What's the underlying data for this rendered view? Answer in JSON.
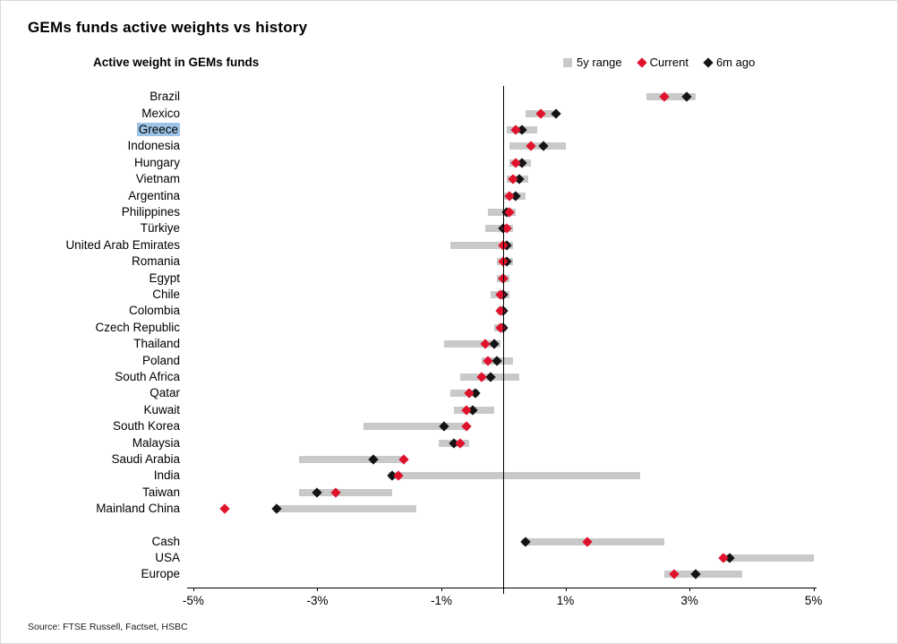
{
  "title": "GEMs funds active weights vs history",
  "subtitle": "Active weight in GEMs funds",
  "source": "Source: FTSE Russell, Factset, HSBC",
  "legend": [
    {
      "label": "5y range",
      "marker": "square"
    },
    {
      "label": "Current",
      "marker": "diamond"
    },
    {
      "label": "6m ago",
      "marker": "diamond"
    }
  ],
  "colors": {
    "current_red": "#e0112b",
    "six_m_black": "#141414",
    "range_gray": "#c9c9c9",
    "highlight_blue": "#9dc3e6"
  },
  "chart_data": {
    "type": "bar",
    "subtype": "horizontal-range-dot-plot",
    "title": "GEMs funds active weights vs history",
    "xlabel": "Active weight in GEMs funds (%)",
    "ylabel": "",
    "xlim": [
      -5.1,
      5.9
    ],
    "grid": false,
    "legend_position": "top-right",
    "highlighted_category": "Greece",
    "xticks": [
      {
        "value": -5,
        "label": "-5%"
      },
      {
        "value": -3,
        "label": "-3%"
      },
      {
        "value": -1,
        "label": "-1%"
      },
      {
        "value": 1,
        "label": "1%"
      },
      {
        "value": 3,
        "label": "3%"
      },
      {
        "value": 5,
        "label": "5%"
      }
    ],
    "series_names": [
      "5y range",
      "Current",
      "6m ago"
    ],
    "rows": [
      {
        "category": "Brazil",
        "range": [
          2.3,
          3.1
        ],
        "current": 2.6,
        "six_m_ago": 2.95
      },
      {
        "category": "Mexico",
        "range": [
          0.35,
          0.8
        ],
        "current": 0.6,
        "six_m_ago": 0.85
      },
      {
        "category": "Greece",
        "range": [
          0.05,
          0.55
        ],
        "current": 0.2,
        "six_m_ago": 0.3
      },
      {
        "category": "Indonesia",
        "range": [
          0.1,
          1.0
        ],
        "current": 0.45,
        "six_m_ago": 0.65
      },
      {
        "category": "Hungary",
        "range": [
          0.1,
          0.45
        ],
        "current": 0.2,
        "six_m_ago": 0.3
      },
      {
        "category": "Vietnam",
        "range": [
          0.05,
          0.4
        ],
        "current": 0.15,
        "six_m_ago": 0.25
      },
      {
        "category": "Argentina",
        "range": [
          0.0,
          0.35
        ],
        "current": 0.1,
        "six_m_ago": 0.2
      },
      {
        "category": "Philippines",
        "range": [
          -0.25,
          0.2
        ],
        "current": 0.1,
        "six_m_ago": 0.05
      },
      {
        "category": "Türkiye",
        "range": [
          -0.3,
          0.15
        ],
        "current": 0.05,
        "six_m_ago": 0.0
      },
      {
        "category": "United Arab Emirates",
        "range": [
          -0.85,
          0.15
        ],
        "current": 0.0,
        "six_m_ago": 0.05
      },
      {
        "category": "Romania",
        "range": [
          -0.1,
          0.15
        ],
        "current": 0.0,
        "six_m_ago": 0.05
      },
      {
        "category": "Egypt",
        "range": [
          -0.1,
          0.1
        ],
        "current": 0.0,
        "six_m_ago": 0.0
      },
      {
        "category": "Chile",
        "range": [
          -0.2,
          0.1
        ],
        "current": -0.05,
        "six_m_ago": 0.0
      },
      {
        "category": "Colombia",
        "range": [
          -0.1,
          0.05
        ],
        "current": -0.05,
        "six_m_ago": 0.0
      },
      {
        "category": "Czech Republic",
        "range": [
          -0.15,
          0.05
        ],
        "current": -0.05,
        "six_m_ago": 0.0
      },
      {
        "category": "Thailand",
        "range": [
          -0.95,
          -0.05
        ],
        "current": -0.3,
        "six_m_ago": -0.15
      },
      {
        "category": "Poland",
        "range": [
          -0.35,
          0.15
        ],
        "current": -0.25,
        "six_m_ago": -0.1
      },
      {
        "category": "South Africa",
        "range": [
          -0.7,
          0.25
        ],
        "current": -0.35,
        "six_m_ago": -0.2
      },
      {
        "category": "Qatar",
        "range": [
          -0.85,
          -0.4
        ],
        "current": -0.55,
        "six_m_ago": -0.45
      },
      {
        "category": "Kuwait",
        "range": [
          -0.8,
          -0.15
        ],
        "current": -0.6,
        "six_m_ago": -0.5
      },
      {
        "category": "South Korea",
        "range": [
          -2.25,
          -0.55
        ],
        "current": -0.6,
        "six_m_ago": -0.95
      },
      {
        "category": "Malaysia",
        "range": [
          -1.05,
          -0.55
        ],
        "current": -0.7,
        "six_m_ago": -0.8
      },
      {
        "category": "Saudi Arabia",
        "range": [
          -3.3,
          -1.6
        ],
        "current": -1.6,
        "six_m_ago": -2.1
      },
      {
        "category": "India",
        "range": [
          -1.85,
          2.2
        ],
        "current": -1.7,
        "six_m_ago": -1.8
      },
      {
        "category": "Taiwan",
        "range": [
          -3.3,
          -1.8
        ],
        "current": -2.7,
        "six_m_ago": -3.0
      },
      {
        "category": "Mainland China",
        "range": [
          -3.7,
          -1.4
        ],
        "current": -4.5,
        "six_m_ago": -3.65
      },
      {
        "category": "Cash",
        "gap_before": true,
        "range": [
          0.3,
          2.6
        ],
        "current": 1.35,
        "six_m_ago": 0.35
      },
      {
        "category": "USA",
        "range": [
          3.5,
          5.0
        ],
        "current": 3.55,
        "six_m_ago": 3.65
      },
      {
        "category": "Europe",
        "range": [
          2.6,
          3.85
        ],
        "current": 2.75,
        "six_m_ago": 3.1
      }
    ]
  }
}
